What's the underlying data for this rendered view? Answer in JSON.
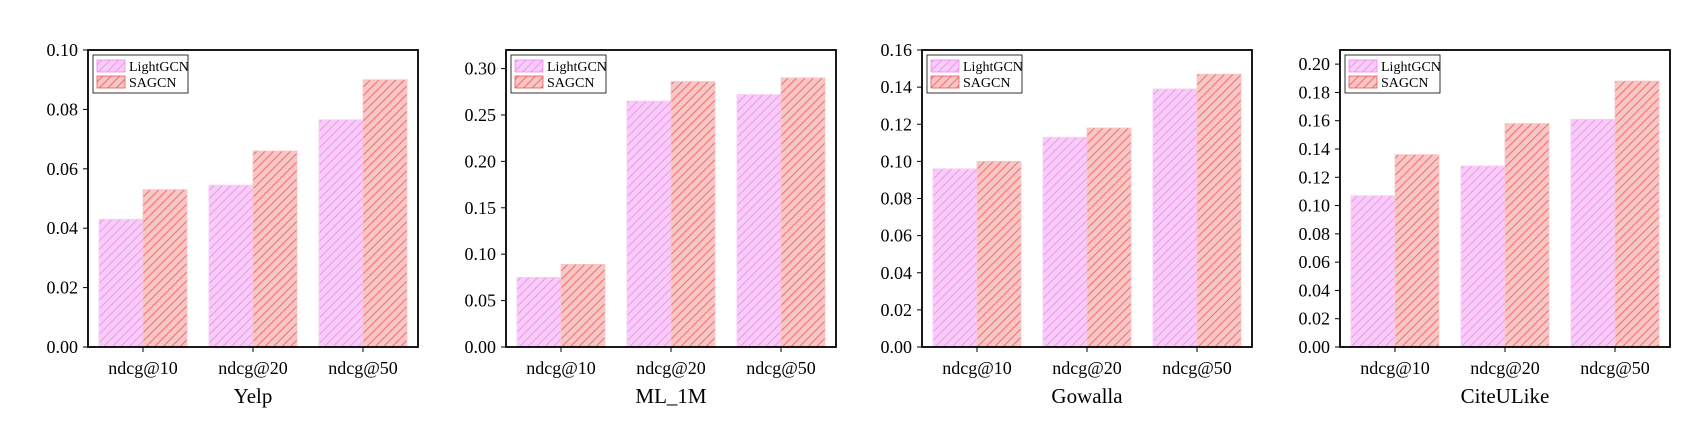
{
  "colors": {
    "lightgcn_fill": "#f7ccf7",
    "lightgcn_hatch": "#ee88ee",
    "sagcn_fill": "#f9c6c6",
    "sagcn_hatch": "#ee5555",
    "axis": "#000000"
  },
  "chart_data": [
    {
      "type": "bar",
      "title": "Yelp",
      "categories": [
        "ndcg@10",
        "ndcg@20",
        "ndcg@50"
      ],
      "series": [
        {
          "name": "LightGCN",
          "values": [
            0.043,
            0.0545,
            0.0765
          ]
        },
        {
          "name": "SAGCN",
          "values": [
            0.053,
            0.066,
            0.09
          ]
        }
      ],
      "ylim": [
        0,
        0.1
      ],
      "yticks": [
        "0.00",
        "0.02",
        "0.04",
        "0.06",
        "0.08",
        "0.10"
      ],
      "legend": "top-left"
    },
    {
      "type": "bar",
      "title": "ML_1M",
      "categories": [
        "ndcg@10",
        "ndcg@20",
        "ndcg@50"
      ],
      "series": [
        {
          "name": "LightGCN",
          "values": [
            0.075,
            0.265,
            0.272
          ]
        },
        {
          "name": "SAGCN",
          "values": [
            0.089,
            0.286,
            0.29
          ]
        }
      ],
      "ylim": [
        0,
        0.32
      ],
      "yticks": [
        "0.00",
        "0.05",
        "0.10",
        "0.15",
        "0.20",
        "0.25",
        "0.30"
      ],
      "legend": "top-left"
    },
    {
      "type": "bar",
      "title": "Gowalla",
      "categories": [
        "ndcg@10",
        "ndcg@20",
        "ndcg@50"
      ],
      "series": [
        {
          "name": "LightGCN",
          "values": [
            0.096,
            0.113,
            0.139
          ]
        },
        {
          "name": "SAGCN",
          "values": [
            0.1,
            0.118,
            0.147
          ]
        }
      ],
      "ylim": [
        0,
        0.16
      ],
      "yticks": [
        "0.00",
        "0.02",
        "0.04",
        "0.06",
        "0.08",
        "0.10",
        "0.12",
        "0.14",
        "0.16"
      ],
      "legend": "top-left"
    },
    {
      "type": "bar",
      "title": "CiteULike",
      "categories": [
        "ndcg@10",
        "ndcg@20",
        "ndcg@50"
      ],
      "series": [
        {
          "name": "LightGCN",
          "values": [
            0.107,
            0.128,
            0.161
          ]
        },
        {
          "name": "SAGCN",
          "values": [
            0.136,
            0.158,
            0.188
          ]
        }
      ],
      "ylim": [
        0,
        0.21
      ],
      "yticks": [
        "0.00",
        "0.02",
        "0.04",
        "0.06",
        "0.08",
        "0.10",
        "0.12",
        "0.14",
        "0.16",
        "0.18",
        "0.20"
      ],
      "legend": "top-left"
    }
  ]
}
